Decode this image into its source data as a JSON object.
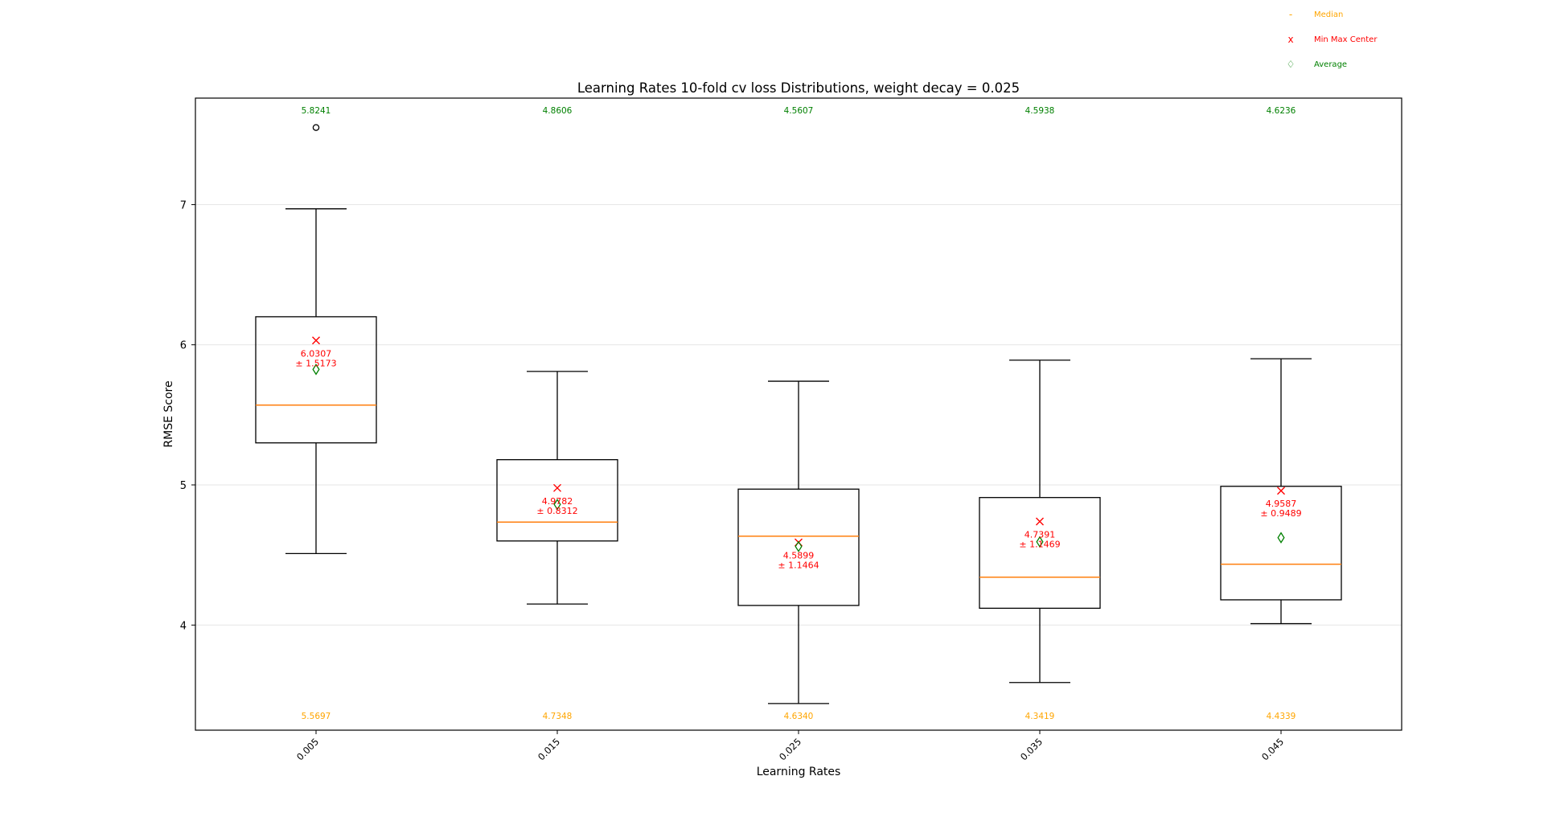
{
  "chart_data": {
    "type": "box",
    "title": "Learning Rates 10-fold cv loss Distributions, weight decay = 0.025",
    "xlabel": "Learning Rates",
    "ylabel": "RMSE Score",
    "categories": [
      "0.005",
      "0.015",
      "0.025",
      "0.035",
      "0.045"
    ],
    "ylim": [
      3.25,
      7.76
    ],
    "yticks": [
      4,
      5,
      6,
      7
    ],
    "grid": "horizontal",
    "legend": {
      "placement": "top-right, outside plot",
      "entries": [
        {
          "label": "Median",
          "marker": "-",
          "color": "#ffa500"
        },
        {
          "label": "Min Max Center",
          "marker": "x",
          "color": "#ff0000"
        },
        {
          "label": "Average",
          "marker": "♢",
          "color": "#008000"
        }
      ]
    },
    "colors": {
      "median": "#ff7f0e",
      "median_label": "#ffa500",
      "center": "#ff0000",
      "average": "#008000",
      "box": "#000000",
      "grid": "#e6e6e6"
    },
    "boxes": [
      {
        "category": "0.005",
        "whisker_low": 4.51,
        "q1": 5.3,
        "median": 5.5697,
        "q3": 6.2,
        "whisker_high": 6.97,
        "outliers": [
          7.55
        ],
        "mean": 5.8241,
        "center": 6.0307,
        "half_range": 1.5173,
        "median_label": "5.5697",
        "mean_label": "5.8241",
        "center_label": "6.0307",
        "range_label": "± 1.5173"
      },
      {
        "category": "0.015",
        "whisker_low": 4.15,
        "q1": 4.6,
        "median": 4.7348,
        "q3": 5.18,
        "whisker_high": 5.81,
        "outliers": [],
        "mean": 4.8606,
        "center": 4.9782,
        "half_range": 0.8312,
        "median_label": "4.7348",
        "mean_label": "4.8606",
        "center_label": "4.9782",
        "range_label": "± 0.8312"
      },
      {
        "category": "0.025",
        "whisker_low": 3.44,
        "q1": 4.14,
        "median": 4.634,
        "q3": 4.97,
        "whisker_high": 5.74,
        "outliers": [],
        "mean": 4.5607,
        "center": 4.5899,
        "half_range": 1.1464,
        "median_label": "4.6340",
        "mean_label": "4.5607",
        "center_label": "4.5899",
        "range_label": "± 1.1464"
      },
      {
        "category": "0.035",
        "whisker_low": 3.59,
        "q1": 4.12,
        "median": 4.3419,
        "q3": 4.91,
        "whisker_high": 5.89,
        "outliers": [],
        "mean": 4.5938,
        "center": 4.7391,
        "half_range": 1.1469,
        "median_label": "4.3419",
        "mean_label": "4.5938",
        "center_label": "4.7391",
        "range_label": "± 1.1469"
      },
      {
        "category": "0.045",
        "whisker_low": 4.01,
        "q1": 4.18,
        "median": 4.4339,
        "q3": 4.99,
        "whisker_high": 5.9,
        "outliers": [],
        "mean": 4.6236,
        "center": 4.9587,
        "half_range": 0.9489,
        "median_label": "4.4339",
        "mean_label": "4.6236",
        "center_label": "4.9587",
        "range_label": "± 0.9489"
      }
    ]
  }
}
